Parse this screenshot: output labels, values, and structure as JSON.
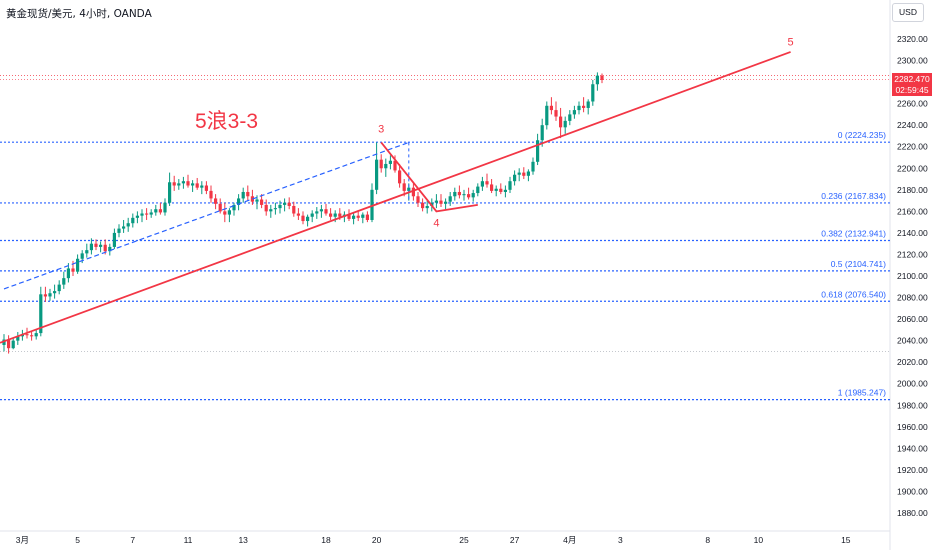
{
  "header": {
    "title": "黄金现货/美元, 4小时, OANDA",
    "currency": "USD"
  },
  "price_tag": {
    "price": "2282.470",
    "countdown": "02:59:45"
  },
  "colors": {
    "up": "#089981",
    "down": "#f23645",
    "fib": "#2962ff",
    "wave": "#f23645",
    "label": "#f23645",
    "grid": "#d1d4dc"
  },
  "chart_data": {
    "type": "candlestick",
    "y_axis": {
      "min": 1870,
      "max": 2330,
      "ticks": [
        1880,
        1900,
        1920,
        1940,
        1960,
        1980,
        2000,
        2020,
        2040,
        2060,
        2080,
        2100,
        2120,
        2140,
        2160,
        2180,
        2200,
        2220,
        2240,
        2260,
        2280,
        2300,
        2320
      ]
    },
    "x_axis": {
      "ticks": [
        {
          "label": "3月",
          "bar": 4
        },
        {
          "label": "5",
          "bar": 16
        },
        {
          "label": "7",
          "bar": 28
        },
        {
          "label": "11",
          "bar": 40
        },
        {
          "label": "13",
          "bar": 52
        },
        {
          "label": "18",
          "bar": 70
        },
        {
          "label": "20",
          "bar": 81
        },
        {
          "label": "25",
          "bar": 100
        },
        {
          "label": "27",
          "bar": 111
        },
        {
          "label": "4月",
          "bar": 123
        },
        {
          "label": "3",
          "bar": 134
        },
        {
          "label": "8",
          "bar": 153
        },
        {
          "label": "10",
          "bar": 164
        },
        {
          "label": "15",
          "bar": 183
        }
      ]
    },
    "annotation": "5浪3-3",
    "wave_labels": [
      {
        "text": "3",
        "bar": 82,
        "price": 2233
      },
      {
        "text": "4",
        "bar": 94,
        "price": 2146
      },
      {
        "text": "5",
        "bar": 171,
        "price": 2314
      }
    ],
    "fibonacci": [
      {
        "level": "0",
        "price": 2224.235
      },
      {
        "level": "0.236",
        "price": 2167.834
      },
      {
        "level": "0.382",
        "price": 2132.941
      },
      {
        "level": "0.5",
        "price": 2104.741
      },
      {
        "level": "0.618",
        "price": 2076.54
      },
      {
        "level": "1",
        "price": 1985.247
      }
    ],
    "fib_labels": [
      "0 (2224.235)",
      "0.236 (2167.834)",
      "0.382 (2132.941)",
      "0.5 (2104.741)",
      "0.618 (2076.540)",
      "1 (1985.247)"
    ],
    "wave_path": [
      {
        "bar": 0,
        "price": 2048
      },
      {
        "bar": 82,
        "price": 2224
      },
      {
        "bar": 94,
        "price": 2160
      },
      {
        "bar": 171,
        "price": 2308
      }
    ],
    "dashed_channel": [
      {
        "bar": 0,
        "price": 2088
      },
      {
        "bar": 88,
        "price": 2224
      }
    ],
    "current_price": 2282.47,
    "high_line": 2286,
    "low_line": 2030,
    "candles": [
      [
        2036,
        2046,
        2030,
        2041
      ],
      [
        2041,
        2045,
        2028,
        2033
      ],
      [
        2033,
        2042,
        2032,
        2040
      ],
      [
        2040,
        2048,
        2036,
        2044
      ],
      [
        2044,
        2050,
        2040,
        2046
      ],
      [
        2046,
        2052,
        2042,
        2045
      ],
      [
        2045,
        2048,
        2040,
        2044
      ],
      [
        2044,
        2050,
        2041,
        2047
      ],
      [
        2047,
        2090,
        2044,
        2083
      ],
      [
        2083,
        2090,
        2076,
        2081
      ],
      [
        2081,
        2088,
        2077,
        2084
      ],
      [
        2084,
        2092,
        2079,
        2086
      ],
      [
        2086,
        2096,
        2083,
        2092
      ],
      [
        2092,
        2104,
        2088,
        2098
      ],
      [
        2098,
        2112,
        2094,
        2107
      ],
      [
        2107,
        2114,
        2100,
        2104
      ],
      [
        2104,
        2120,
        2102,
        2116
      ],
      [
        2116,
        2124,
        2112,
        2121
      ],
      [
        2121,
        2130,
        2117,
        2124
      ],
      [
        2124,
        2135,
        2120,
        2130
      ],
      [
        2130,
        2134,
        2124,
        2127
      ],
      [
        2127,
        2132,
        2122,
        2129
      ],
      [
        2129,
        2134,
        2120,
        2123
      ],
      [
        2123,
        2130,
        2119,
        2127
      ],
      [
        2127,
        2144,
        2125,
        2140
      ],
      [
        2140,
        2148,
        2136,
        2144
      ],
      [
        2144,
        2152,
        2140,
        2146
      ],
      [
        2146,
        2154,
        2141,
        2149
      ],
      [
        2149,
        2158,
        2145,
        2154
      ],
      [
        2154,
        2160,
        2149,
        2156
      ],
      [
        2156,
        2162,
        2150,
        2158
      ],
      [
        2158,
        2163,
        2152,
        2157
      ],
      [
        2157,
        2162,
        2154,
        2159
      ],
      [
        2159,
        2166,
        2156,
        2162
      ],
      [
        2162,
        2168,
        2157,
        2159
      ],
      [
        2159,
        2172,
        2156,
        2168
      ],
      [
        2168,
        2196,
        2165,
        2187
      ],
      [
        2187,
        2193,
        2179,
        2184
      ],
      [
        2184,
        2190,
        2180,
        2186
      ],
      [
        2186,
        2192,
        2181,
        2188
      ],
      [
        2188,
        2194,
        2182,
        2184
      ],
      [
        2184,
        2189,
        2178,
        2186
      ],
      [
        2186,
        2191,
        2180,
        2182
      ],
      [
        2182,
        2188,
        2176,
        2184
      ],
      [
        2184,
        2188,
        2176,
        2179
      ],
      [
        2179,
        2184,
        2168,
        2172
      ],
      [
        2172,
        2176,
        2162,
        2167
      ],
      [
        2167,
        2172,
        2158,
        2160
      ],
      [
        2160,
        2168,
        2150,
        2157
      ],
      [
        2157,
        2163,
        2150,
        2161
      ],
      [
        2161,
        2168,
        2156,
        2166
      ],
      [
        2166,
        2176,
        2161,
        2172
      ],
      [
        2172,
        2182,
        2168,
        2178
      ],
      [
        2178,
        2184,
        2170,
        2174
      ],
      [
        2174,
        2180,
        2166,
        2169
      ],
      [
        2169,
        2175,
        2162,
        2171
      ],
      [
        2171,
        2176,
        2163,
        2166
      ],
      [
        2166,
        2171,
        2156,
        2160
      ],
      [
        2160,
        2166,
        2154,
        2162
      ],
      [
        2162,
        2168,
        2157,
        2163
      ],
      [
        2163,
        2170,
        2158,
        2166
      ],
      [
        2166,
        2172,
        2160,
        2168
      ],
      [
        2168,
        2173,
        2162,
        2165
      ],
      [
        2165,
        2169,
        2155,
        2158
      ],
      [
        2158,
        2163,
        2152,
        2156
      ],
      [
        2156,
        2160,
        2148,
        2151
      ],
      [
        2151,
        2157,
        2146,
        2155
      ],
      [
        2155,
        2161,
        2150,
        2158
      ],
      [
        2158,
        2164,
        2153,
        2160
      ],
      [
        2160,
        2166,
        2154,
        2162
      ],
      [
        2162,
        2167,
        2156,
        2158
      ],
      [
        2158,
        2163,
        2152,
        2155
      ],
      [
        2155,
        2161,
        2150,
        2158
      ],
      [
        2158,
        2163,
        2152,
        2155
      ],
      [
        2155,
        2160,
        2150,
        2157
      ],
      [
        2157,
        2162,
        2151,
        2153
      ],
      [
        2153,
        2159,
        2148,
        2156
      ],
      [
        2156,
        2161,
        2151,
        2154
      ],
      [
        2154,
        2159,
        2149,
        2157
      ],
      [
        2157,
        2160,
        2150,
        2152
      ],
      [
        2152,
        2186,
        2150,
        2180
      ],
      [
        2180,
        2224,
        2176,
        2208
      ],
      [
        2208,
        2213,
        2196,
        2200
      ],
      [
        2200,
        2209,
        2192,
        2204
      ],
      [
        2204,
        2212,
        2199,
        2207
      ],
      [
        2207,
        2212,
        2196,
        2198
      ],
      [
        2198,
        2204,
        2182,
        2186
      ],
      [
        2186,
        2190,
        2174,
        2179
      ],
      [
        2179,
        2186,
        2170,
        2182
      ],
      [
        2182,
        2186,
        2170,
        2174
      ],
      [
        2174,
        2178,
        2164,
        2168
      ],
      [
        2168,
        2172,
        2160,
        2163
      ],
      [
        2163,
        2170,
        2158,
        2165
      ],
      [
        2165,
        2172,
        2160,
        2168
      ],
      [
        2168,
        2176,
        2163,
        2170
      ],
      [
        2170,
        2176,
        2164,
        2167
      ],
      [
        2167,
        2172,
        2162,
        2169
      ],
      [
        2169,
        2178,
        2165,
        2174
      ],
      [
        2174,
        2182,
        2170,
        2178
      ],
      [
        2178,
        2184,
        2172,
        2175
      ],
      [
        2175,
        2180,
        2170,
        2176
      ],
      [
        2176,
        2182,
        2171,
        2173
      ],
      [
        2173,
        2180,
        2169,
        2177
      ],
      [
        2177,
        2186,
        2174,
        2183
      ],
      [
        2183,
        2192,
        2179,
        2188
      ],
      [
        2188,
        2195,
        2182,
        2185
      ],
      [
        2185,
        2190,
        2177,
        2179
      ],
      [
        2179,
        2184,
        2174,
        2181
      ],
      [
        2181,
        2186,
        2176,
        2178
      ],
      [
        2178,
        2184,
        2173,
        2180
      ],
      [
        2180,
        2192,
        2177,
        2188
      ],
      [
        2188,
        2198,
        2184,
        2194
      ],
      [
        2194,
        2200,
        2188,
        2196
      ],
      [
        2196,
        2201,
        2190,
        2193
      ],
      [
        2193,
        2199,
        2188,
        2197
      ],
      [
        2197,
        2210,
        2194,
        2206
      ],
      [
        2206,
        2232,
        2203,
        2226
      ],
      [
        2226,
        2246,
        2220,
        2240
      ],
      [
        2240,
        2262,
        2236,
        2258
      ],
      [
        2258,
        2266,
        2250,
        2254
      ],
      [
        2254,
        2262,
        2244,
        2248
      ],
      [
        2248,
        2256,
        2228,
        2238
      ],
      [
        2238,
        2248,
        2232,
        2244
      ],
      [
        2244,
        2254,
        2240,
        2250
      ],
      [
        2250,
        2258,
        2246,
        2254
      ],
      [
        2254,
        2262,
        2250,
        2258
      ],
      [
        2258,
        2266,
        2252,
        2256
      ],
      [
        2256,
        2264,
        2250,
        2262
      ],
      [
        2262,
        2282,
        2258,
        2278
      ],
      [
        2278,
        2289,
        2272,
        2286
      ],
      [
        2286,
        2288,
        2279,
        2282
      ]
    ]
  }
}
